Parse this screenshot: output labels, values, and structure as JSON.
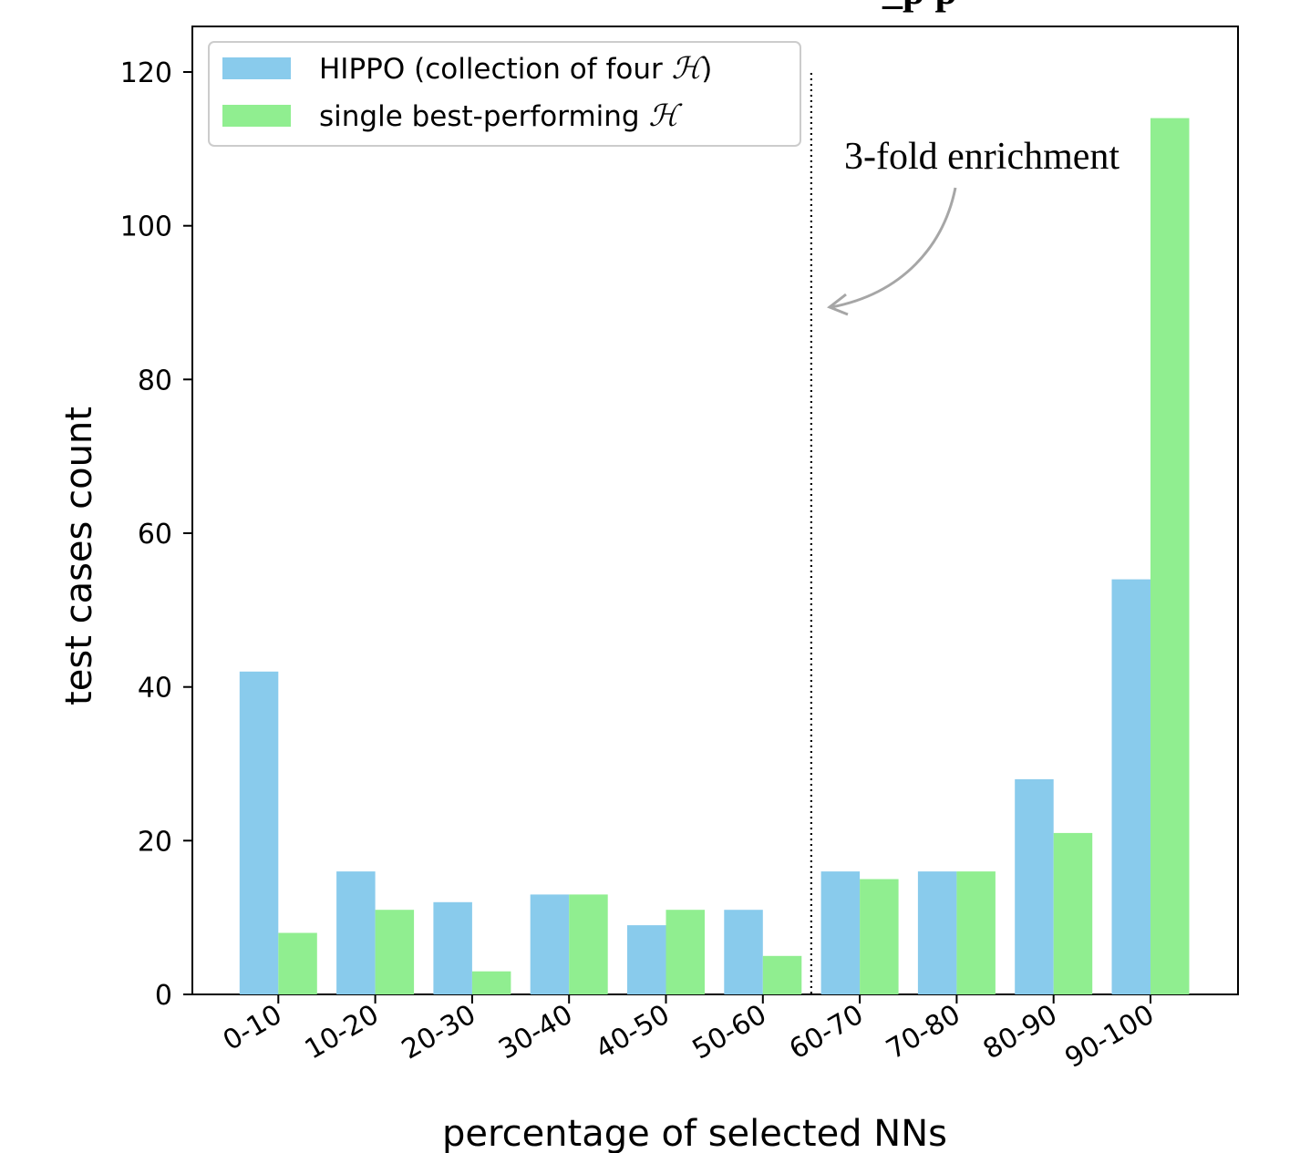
{
  "chart_data": {
    "type": "bar",
    "title_fragment": "_p  p",
    "xlabel": "percentage of selected  NNs",
    "ylabel": "test cases count",
    "categories": [
      "0-10",
      "10-20",
      "20-30",
      "30-40",
      "40-50",
      "50-60",
      "60-70",
      "70-80",
      "80-90",
      "90-100"
    ],
    "series": [
      {
        "name": "HIPPO (collection of four ",
        "name_math": "ℋ",
        "name_suffix": ")",
        "color": "#89CBEC",
        "values": [
          42,
          16,
          12,
          13,
          9,
          11,
          16,
          16,
          28,
          54
        ]
      },
      {
        "name": "single best-performing ",
        "name_math": "ℋ",
        "name_suffix": "",
        "color": "#90EE90",
        "values": [
          8,
          11,
          3,
          13,
          11,
          5,
          15,
          16,
          21,
          114
        ]
      }
    ],
    "ylim": [
      0,
      125
    ],
    "yticks": [
      "0",
      "20",
      "40",
      "60",
      "80",
      "100",
      "120"
    ],
    "legend_position": "upper-left",
    "grid": false,
    "annotation": {
      "text": "3-fold enrichment",
      "divider_between_categories": [
        "50-60",
        "60-70"
      ]
    }
  }
}
